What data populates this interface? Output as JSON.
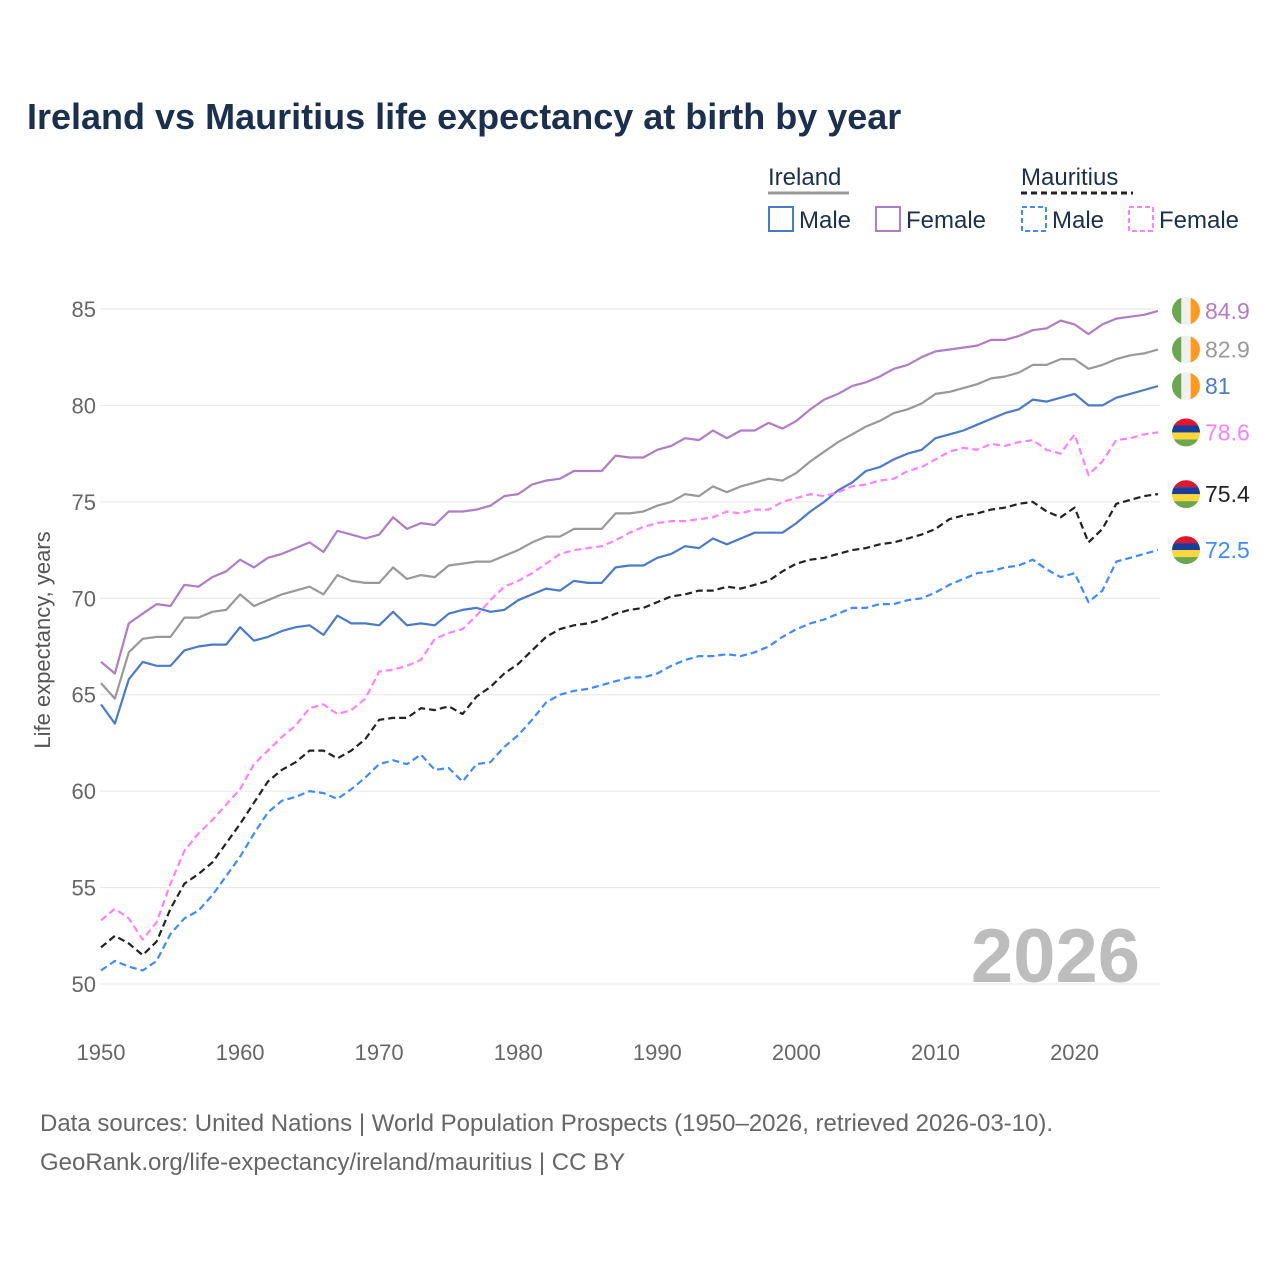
{
  "chart_data": {
    "type": "line",
    "title": "Ireland vs Mauritius life expectancy at birth by year",
    "xlabel": "",
    "ylabel": "Life expectancy, years",
    "xlim": [
      1950,
      2026
    ],
    "ylim": [
      50,
      85
    ],
    "xticks": [
      1950,
      1960,
      1970,
      1980,
      1990,
      2000,
      2010,
      2020
    ],
    "yticks": [
      50,
      55,
      60,
      65,
      70,
      75,
      80,
      85
    ],
    "grid": true,
    "legend_position": "top-right",
    "watermark_year": "2026",
    "legend": {
      "groups": [
        {
          "name": "Ireland",
          "items": [
            "Male",
            "Female"
          ]
        },
        {
          "name": "Mauritius",
          "items": [
            "Male",
            "Female"
          ]
        }
      ]
    },
    "x_start": 1950,
    "series": [
      {
        "name": "Ireland Female",
        "country": "Ireland",
        "color": "#b07cc6",
        "dashed": false,
        "end_label": "84.9",
        "values": [
          66.7,
          66.1,
          68.7,
          69.2,
          69.7,
          69.6,
          70.7,
          70.6,
          71.1,
          71.4,
          72.0,
          71.6,
          72.1,
          72.3,
          72.6,
          72.9,
          72.4,
          73.5,
          73.3,
          73.1,
          73.3,
          74.2,
          73.6,
          73.9,
          73.8,
          74.5,
          74.5,
          74.6,
          74.8,
          75.3,
          75.4,
          75.9,
          76.1,
          76.2,
          76.6,
          76.6,
          76.6,
          77.4,
          77.3,
          77.3,
          77.7,
          77.9,
          78.3,
          78.2,
          78.7,
          78.3,
          78.7,
          78.7,
          79.1,
          78.8,
          79.2,
          79.8,
          80.3,
          80.6,
          81.0,
          81.2,
          81.5,
          81.9,
          82.1,
          82.5,
          82.8,
          82.9,
          83.0,
          83.1,
          83.4,
          83.4,
          83.6,
          83.9,
          84.0,
          84.4,
          84.2,
          83.7,
          84.2,
          84.5,
          84.6,
          84.7,
          84.9
        ]
      },
      {
        "name": "Ireland Total",
        "country": "Ireland",
        "color": "#999999",
        "dashed": false,
        "end_label": "82.9",
        "values": [
          65.6,
          64.8,
          67.2,
          67.9,
          68.0,
          68.0,
          69.0,
          69.0,
          69.3,
          69.4,
          70.2,
          69.6,
          69.9,
          70.2,
          70.4,
          70.6,
          70.2,
          71.2,
          70.9,
          70.8,
          70.8,
          71.6,
          71.0,
          71.2,
          71.1,
          71.7,
          71.8,
          71.9,
          71.9,
          72.2,
          72.5,
          72.9,
          73.2,
          73.2,
          73.6,
          73.6,
          73.6,
          74.4,
          74.4,
          74.5,
          74.8,
          75.0,
          75.4,
          75.3,
          75.8,
          75.5,
          75.8,
          76.0,
          76.2,
          76.1,
          76.5,
          77.1,
          77.6,
          78.1,
          78.5,
          78.9,
          79.2,
          79.6,
          79.8,
          80.1,
          80.6,
          80.7,
          80.9,
          81.1,
          81.4,
          81.5,
          81.7,
          82.1,
          82.1,
          82.4,
          82.4,
          81.9,
          82.1,
          82.4,
          82.6,
          82.7,
          82.9
        ]
      },
      {
        "name": "Ireland Male",
        "country": "Ireland",
        "color": "#4a7bc8",
        "dashed": false,
        "end_label": "81",
        "values": [
          64.5,
          63.5,
          65.8,
          66.7,
          66.5,
          66.5,
          67.3,
          67.5,
          67.6,
          67.6,
          68.5,
          67.8,
          68.0,
          68.3,
          68.5,
          68.6,
          68.1,
          69.1,
          68.7,
          68.7,
          68.6,
          69.3,
          68.6,
          68.7,
          68.6,
          69.2,
          69.4,
          69.5,
          69.3,
          69.4,
          69.9,
          70.2,
          70.5,
          70.4,
          70.9,
          70.8,
          70.8,
          71.6,
          71.7,
          71.7,
          72.1,
          72.3,
          72.7,
          72.6,
          73.1,
          72.8,
          73.1,
          73.4,
          73.4,
          73.4,
          73.9,
          74.5,
          75.0,
          75.6,
          76.0,
          76.6,
          76.8,
          77.2,
          77.5,
          77.7,
          78.3,
          78.5,
          78.7,
          79.0,
          79.3,
          79.6,
          79.8,
          80.3,
          80.2,
          80.4,
          80.6,
          80.0,
          80.0,
          80.4,
          80.6,
          80.8,
          81.0
        ]
      },
      {
        "name": "Mauritius Female",
        "country": "Mauritius",
        "color": "#ff80ff",
        "dashed": true,
        "end_label": "78.6",
        "values": [
          53.3,
          53.9,
          53.4,
          52.3,
          53.2,
          55.2,
          56.9,
          57.8,
          58.5,
          59.3,
          60.1,
          61.4,
          62.1,
          62.8,
          63.4,
          64.3,
          64.5,
          64.0,
          64.2,
          64.8,
          66.2,
          66.3,
          66.5,
          66.8,
          67.9,
          68.2,
          68.4,
          69.1,
          69.9,
          70.6,
          70.9,
          71.3,
          71.8,
          72.3,
          72.5,
          72.6,
          72.7,
          73.0,
          73.4,
          73.7,
          73.9,
          74.0,
          74.0,
          74.1,
          74.2,
          74.5,
          74.4,
          74.6,
          74.6,
          75.0,
          75.2,
          75.4,
          75.3,
          75.5,
          75.8,
          75.9,
          76.1,
          76.2,
          76.6,
          76.8,
          77.2,
          77.6,
          77.8,
          77.7,
          78.0,
          77.9,
          78.1,
          78.2,
          77.7,
          77.5,
          78.5,
          76.4,
          77.1,
          78.2,
          78.3,
          78.5,
          78.6
        ]
      },
      {
        "name": "Mauritius Total",
        "country": "Mauritius",
        "color": "#222222",
        "dashed": true,
        "end_label": "75.4",
        "values": [
          51.9,
          52.5,
          52.1,
          51.5,
          52.2,
          53.9,
          55.2,
          55.7,
          56.3,
          57.3,
          58.3,
          59.4,
          60.5,
          61.1,
          61.5,
          62.1,
          62.1,
          61.7,
          62.1,
          62.7,
          63.7,
          63.8,
          63.8,
          64.3,
          64.2,
          64.4,
          64.0,
          64.9,
          65.4,
          66.1,
          66.6,
          67.3,
          68.0,
          68.4,
          68.6,
          68.7,
          68.9,
          69.2,
          69.4,
          69.5,
          69.8,
          70.1,
          70.2,
          70.4,
          70.4,
          70.6,
          70.5,
          70.7,
          70.9,
          71.4,
          71.8,
          72.0,
          72.1,
          72.3,
          72.5,
          72.6,
          72.8,
          72.9,
          73.1,
          73.3,
          73.6,
          74.1,
          74.3,
          74.4,
          74.6,
          74.7,
          74.9,
          75.0,
          74.5,
          74.2,
          74.7,
          72.9,
          73.6,
          74.9,
          75.1,
          75.3,
          75.4
        ]
      },
      {
        "name": "Mauritius Male",
        "country": "Mauritius",
        "color": "#3d8bff",
        "dashed": true,
        "end_label": "72.5",
        "values": [
          50.7,
          51.2,
          50.9,
          50.7,
          51.2,
          52.6,
          53.4,
          53.8,
          54.6,
          55.6,
          56.6,
          57.8,
          58.9,
          59.5,
          59.7,
          60.0,
          59.9,
          59.6,
          60.1,
          60.7,
          61.4,
          61.6,
          61.4,
          61.9,
          61.1,
          61.2,
          60.5,
          61.4,
          61.5,
          62.3,
          62.9,
          63.7,
          64.6,
          65.0,
          65.2,
          65.3,
          65.5,
          65.7,
          65.9,
          65.9,
          66.1,
          66.5,
          66.8,
          67.0,
          67.0,
          67.1,
          67.0,
          67.2,
          67.5,
          68.0,
          68.4,
          68.7,
          68.9,
          69.2,
          69.5,
          69.5,
          69.7,
          69.7,
          69.9,
          70.0,
          70.3,
          70.7,
          71.0,
          71.3,
          71.4,
          71.6,
          71.7,
          72.0,
          71.5,
          71.1,
          71.3,
          69.8,
          70.4,
          71.9,
          72.1,
          72.3,
          72.5
        ]
      }
    ]
  },
  "footer": {
    "line1": "Data sources: United Nations | World Population Prospects (1950–2026, retrieved 2026-03-10).",
    "line2": "GeoRank.org/life-expectancy/ireland/mauritius | CC BY"
  }
}
